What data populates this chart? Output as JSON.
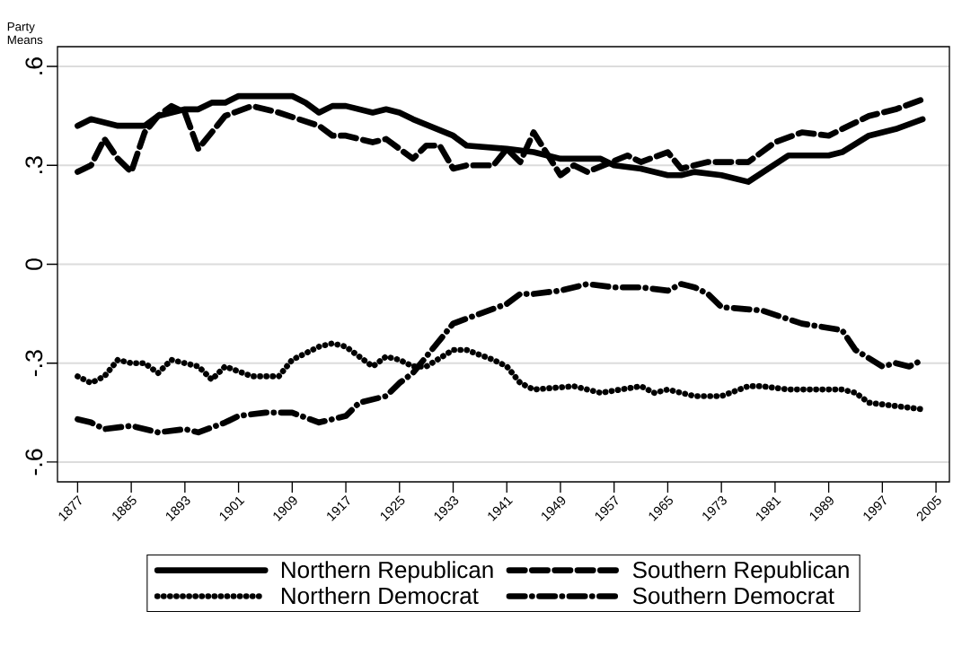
{
  "chart_data": {
    "type": "line",
    "ylabel": "Party Means",
    "xlim": [
      1874,
      2007
    ],
    "ylim": [
      -0.66,
      0.66
    ],
    "xticks": [
      1877,
      1885,
      1893,
      1901,
      1909,
      1917,
      1925,
      1933,
      1941,
      1949,
      1957,
      1965,
      1973,
      1981,
      1989,
      1997,
      2005
    ],
    "yticks": [
      {
        "value": -0.6,
        "label": "-.6"
      },
      {
        "value": -0.3,
        "label": "-.3"
      },
      {
        "value": 0,
        "label": "0"
      },
      {
        "value": 0.3,
        "label": ".3"
      },
      {
        "value": 0.6,
        "label": ".6"
      }
    ],
    "grid": "y",
    "legend": "bottom",
    "series": [
      {
        "name": "Northern Republican",
        "color": "#000000",
        "line_style": "solid",
        "x": [
          1877,
          1879,
          1883,
          1887,
          1889,
          1893,
          1895,
          1897,
          1899,
          1901,
          1905,
          1909,
          1911,
          1913,
          1915,
          1917,
          1921,
          1923,
          1925,
          1927,
          1933,
          1935,
          1941,
          1945,
          1949,
          1955,
          1957,
          1961,
          1965,
          1967,
          1969,
          1973,
          1975,
          1977,
          1983,
          1989,
          1991,
          1995,
          1999,
          2003
        ],
        "values": [
          0.42,
          0.44,
          0.42,
          0.42,
          0.45,
          0.47,
          0.47,
          0.49,
          0.49,
          0.51,
          0.51,
          0.51,
          0.49,
          0.46,
          0.48,
          0.48,
          0.46,
          0.47,
          0.46,
          0.44,
          0.39,
          0.36,
          0.35,
          0.34,
          0.32,
          0.32,
          0.3,
          0.29,
          0.27,
          0.27,
          0.28,
          0.27,
          0.26,
          0.25,
          0.33,
          0.33,
          0.34,
          0.39,
          0.41,
          0.44
        ]
      },
      {
        "name": "Southern Republican",
        "color": "#000000",
        "line_style": "dashed",
        "x": [
          1877,
          1879,
          1881,
          1883,
          1885,
          1887,
          1889,
          1891,
          1893,
          1895,
          1897,
          1899,
          1903,
          1907,
          1913,
          1915,
          1917,
          1921,
          1923,
          1927,
          1929,
          1931,
          1933,
          1935,
          1939,
          1941,
          1943,
          1945,
          1949,
          1951,
          1953,
          1959,
          1961,
          1965,
          1967,
          1971,
          1975,
          1977,
          1981,
          1985,
          1989,
          1991,
          1995,
          1999,
          2003
        ],
        "values": [
          0.28,
          0.3,
          0.38,
          0.32,
          0.28,
          0.4,
          0.45,
          0.48,
          0.46,
          0.35,
          0.4,
          0.45,
          0.48,
          0.46,
          0.42,
          0.39,
          0.39,
          0.37,
          0.38,
          0.32,
          0.36,
          0.36,
          0.29,
          0.3,
          0.3,
          0.35,
          0.31,
          0.4,
          0.27,
          0.3,
          0.28,
          0.33,
          0.31,
          0.34,
          0.29,
          0.31,
          0.31,
          0.31,
          0.37,
          0.4,
          0.39,
          0.41,
          0.45,
          0.47,
          0.5
        ]
      },
      {
        "name": "Northern Democrat",
        "color": "#000000",
        "line_style": "dotted",
        "x": [
          1877,
          1879,
          1881,
          1883,
          1885,
          1887,
          1889,
          1891,
          1893,
          1895,
          1897,
          1899,
          1903,
          1905,
          1907,
          1909,
          1913,
          1915,
          1917,
          1921,
          1923,
          1925,
          1927,
          1929,
          1933,
          1935,
          1939,
          1941,
          1943,
          1945,
          1951,
          1955,
          1961,
          1963,
          1965,
          1969,
          1973,
          1977,
          1979,
          1983,
          1987,
          1991,
          1993,
          1995,
          1999,
          2003
        ],
        "values": [
          -0.34,
          -0.36,
          -0.34,
          -0.29,
          -0.3,
          -0.3,
          -0.33,
          -0.29,
          -0.3,
          -0.31,
          -0.35,
          -0.31,
          -0.34,
          -0.34,
          -0.34,
          -0.29,
          -0.25,
          -0.24,
          -0.25,
          -0.31,
          -0.28,
          -0.29,
          -0.31,
          -0.31,
          -0.26,
          -0.26,
          -0.29,
          -0.31,
          -0.36,
          -0.38,
          -0.37,
          -0.39,
          -0.37,
          -0.39,
          -0.38,
          -0.4,
          -0.4,
          -0.37,
          -0.37,
          -0.38,
          -0.38,
          -0.38,
          -0.39,
          -0.42,
          -0.43,
          -0.44
        ]
      },
      {
        "name": "Southern Democrat",
        "color": "#000000",
        "line_style": "dashdot",
        "x": [
          1877,
          1879,
          1881,
          1885,
          1889,
          1893,
          1895,
          1899,
          1901,
          1905,
          1909,
          1913,
          1917,
          1919,
          1923,
          1925,
          1927,
          1929,
          1933,
          1937,
          1941,
          1943,
          1945,
          1949,
          1953,
          1957,
          1961,
          1965,
          1967,
          1969,
          1971,
          1973,
          1979,
          1985,
          1991,
          1993,
          1997,
          1999,
          2001,
          2003
        ],
        "values": [
          -0.47,
          -0.48,
          -0.5,
          -0.49,
          -0.51,
          -0.5,
          -0.51,
          -0.48,
          -0.46,
          -0.45,
          -0.45,
          -0.48,
          -0.46,
          -0.42,
          -0.4,
          -0.36,
          -0.33,
          -0.28,
          -0.18,
          -0.15,
          -0.12,
          -0.09,
          -0.09,
          -0.08,
          -0.06,
          -0.07,
          -0.07,
          -0.08,
          -0.06,
          -0.07,
          -0.09,
          -0.13,
          -0.14,
          -0.18,
          -0.2,
          -0.26,
          -0.31,
          -0.3,
          -0.31,
          -0.29
        ]
      }
    ]
  }
}
